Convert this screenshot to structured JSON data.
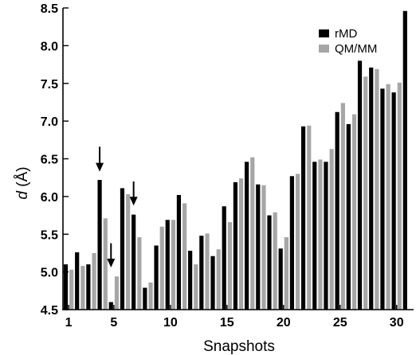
{
  "chart_data": {
    "type": "bar",
    "xlabel": "Snapshots",
    "ylabel_italic": "d",
    "ylabel_rest": " (Å)",
    "ylim": [
      4.5,
      8.5
    ],
    "xlim": [
      0.5,
      31.5
    ],
    "grid": false,
    "legend_position": "top-right",
    "y_ticks": [
      "4.5",
      "5.0",
      "5.5",
      "6.0",
      "6.5",
      "7.0",
      "7.5",
      "8.0",
      "8.5"
    ],
    "x_ticks": [
      "1",
      "5",
      "10",
      "15",
      "20",
      "25",
      "30"
    ],
    "categories": [
      1,
      2,
      3,
      4,
      5,
      6,
      7,
      8,
      9,
      10,
      11,
      12,
      13,
      14,
      15,
      16,
      17,
      18,
      19,
      20,
      21,
      22,
      23,
      24,
      25,
      26,
      27,
      28,
      29,
      30,
      31
    ],
    "series": [
      {
        "name": "rMD",
        "color": "#000000",
        "values": [
          5.1,
          5.26,
          5.1,
          6.22,
          4.6,
          6.11,
          5.76,
          4.79,
          5.35,
          5.69,
          6.02,
          5.28,
          5.48,
          5.21,
          5.87,
          6.19,
          6.46,
          6.16,
          5.75,
          5.31,
          6.27,
          6.93,
          6.46,
          6.46,
          7.12,
          6.96,
          7.8,
          7.71,
          7.43,
          7.38,
          8.46
        ]
      },
      {
        "name": "QM/MM",
        "color": "#a6a6a6",
        "values": [
          5.03,
          5.08,
          5.25,
          5.71,
          4.94,
          6.03,
          5.46,
          4.86,
          5.6,
          5.69,
          5.91,
          5.1,
          5.51,
          5.3,
          5.66,
          6.24,
          6.52,
          6.15,
          5.79,
          5.46,
          6.3,
          6.94,
          6.49,
          6.63,
          7.24,
          7.09,
          7.59,
          7.69,
          7.49,
          7.51,
          null
        ]
      }
    ],
    "annotations": [
      {
        "kind": "arrow-down",
        "x": 4,
        "y_tip": 6.33,
        "y_tail": 6.66
      },
      {
        "kind": "arrow-down",
        "x": 5,
        "y_tip": 5.06,
        "y_tail": 5.38
      },
      {
        "kind": "arrow-down",
        "x": 7,
        "y_tip": 5.88,
        "y_tail": 6.2
      }
    ]
  }
}
